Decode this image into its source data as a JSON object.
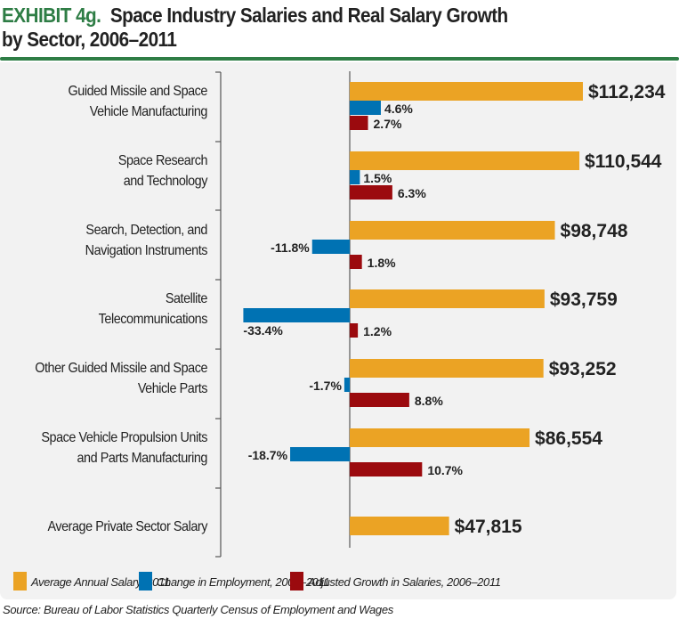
{
  "title": {
    "exhibit": "EXHIBIT 4g.",
    "line1": "Space Industry Salaries and Real Salary Growth",
    "line2": "by Sector, 2006–2011"
  },
  "source": "Source: Bureau of Labor Statistics Quarterly Census of Employment and Wages",
  "colors": {
    "salary": "#eba324",
    "employment": "#0072b3",
    "growth": "#9b0a0e",
    "accent": "#2e7d45",
    "panel": "#f2f2f2"
  },
  "chart_data": {
    "type": "bar",
    "orientation": "horizontal",
    "categories": [
      [
        "Guided Missile and Space",
        "Vehicle Manufacturing"
      ],
      [
        "Space Research",
        "and Technology"
      ],
      [
        "Search, Detection, and",
        "Navigation Instruments"
      ],
      [
        "Satellite",
        "Telecommunications"
      ],
      [
        "Other Guided Missile and Space",
        "Vehicle Parts"
      ],
      [
        "Space Vehicle Propulsion Units",
        "and Parts Manufacturing"
      ],
      [
        "Average Private Sector Salary"
      ]
    ],
    "series": [
      {
        "name": "Average Annual Salary, 2011",
        "values": [
          112234,
          110544,
          98748,
          93759,
          93252,
          86554,
          47815
        ],
        "labels": [
          "$112,234",
          "$110,544",
          "$98,748",
          "$93,759",
          "$93,252",
          "$86,554",
          "$47,815"
        ]
      },
      {
        "name": "Change in Employment, 2006–2011",
        "values": [
          4.6,
          1.5,
          -11.8,
          -33.4,
          -1.7,
          -18.7,
          null
        ],
        "labels": [
          "4.6%",
          "1.5%",
          "-11.8%",
          "-33.4%",
          "-1.7%",
          "-18.7%",
          null
        ]
      },
      {
        "name": "Adjusted Growth in Salaries, 2006–2011",
        "values": [
          2.7,
          6.3,
          1.8,
          1.2,
          8.8,
          10.7,
          null
        ],
        "labels": [
          "2.7%",
          "6.3%",
          "1.8%",
          "1.2%",
          "8.8%",
          "10.7%",
          null
        ]
      }
    ],
    "legend": "bottom",
    "grid": false
  }
}
